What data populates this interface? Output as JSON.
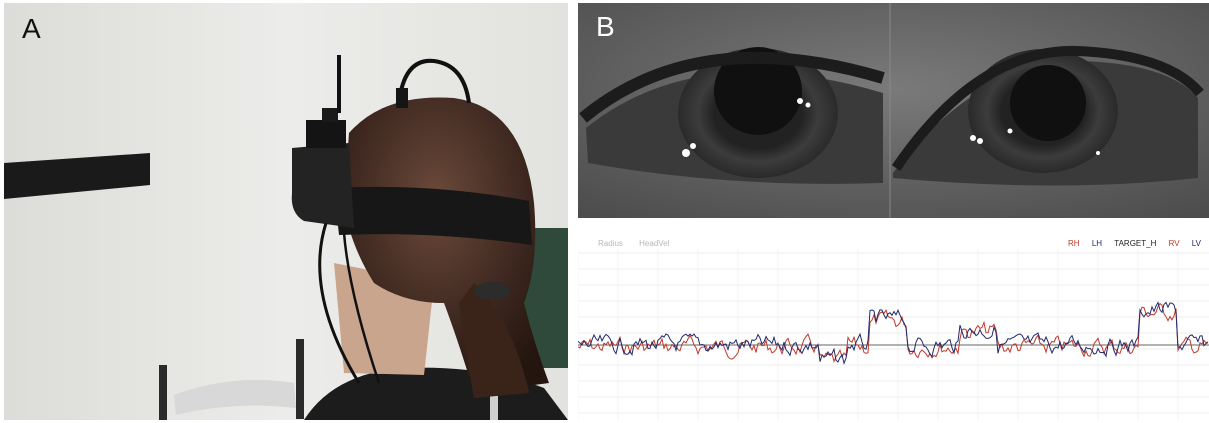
{
  "panel_a": {
    "letter": "A"
  },
  "panel_b": {
    "letter": "B",
    "top_labels": [
      "Radius",
      "HeadVel"
    ],
    "legend": [
      {
        "label": "RH",
        "color": "#c0392b"
      },
      {
        "label": "LH",
        "color": "#1f2a6b"
      },
      {
        "label": "TARGET_H",
        "color": "#222222"
      },
      {
        "label": "RV",
        "color": "#c0392b"
      },
      {
        "label": "LV",
        "color": "#1f2a6b"
      }
    ]
  }
}
